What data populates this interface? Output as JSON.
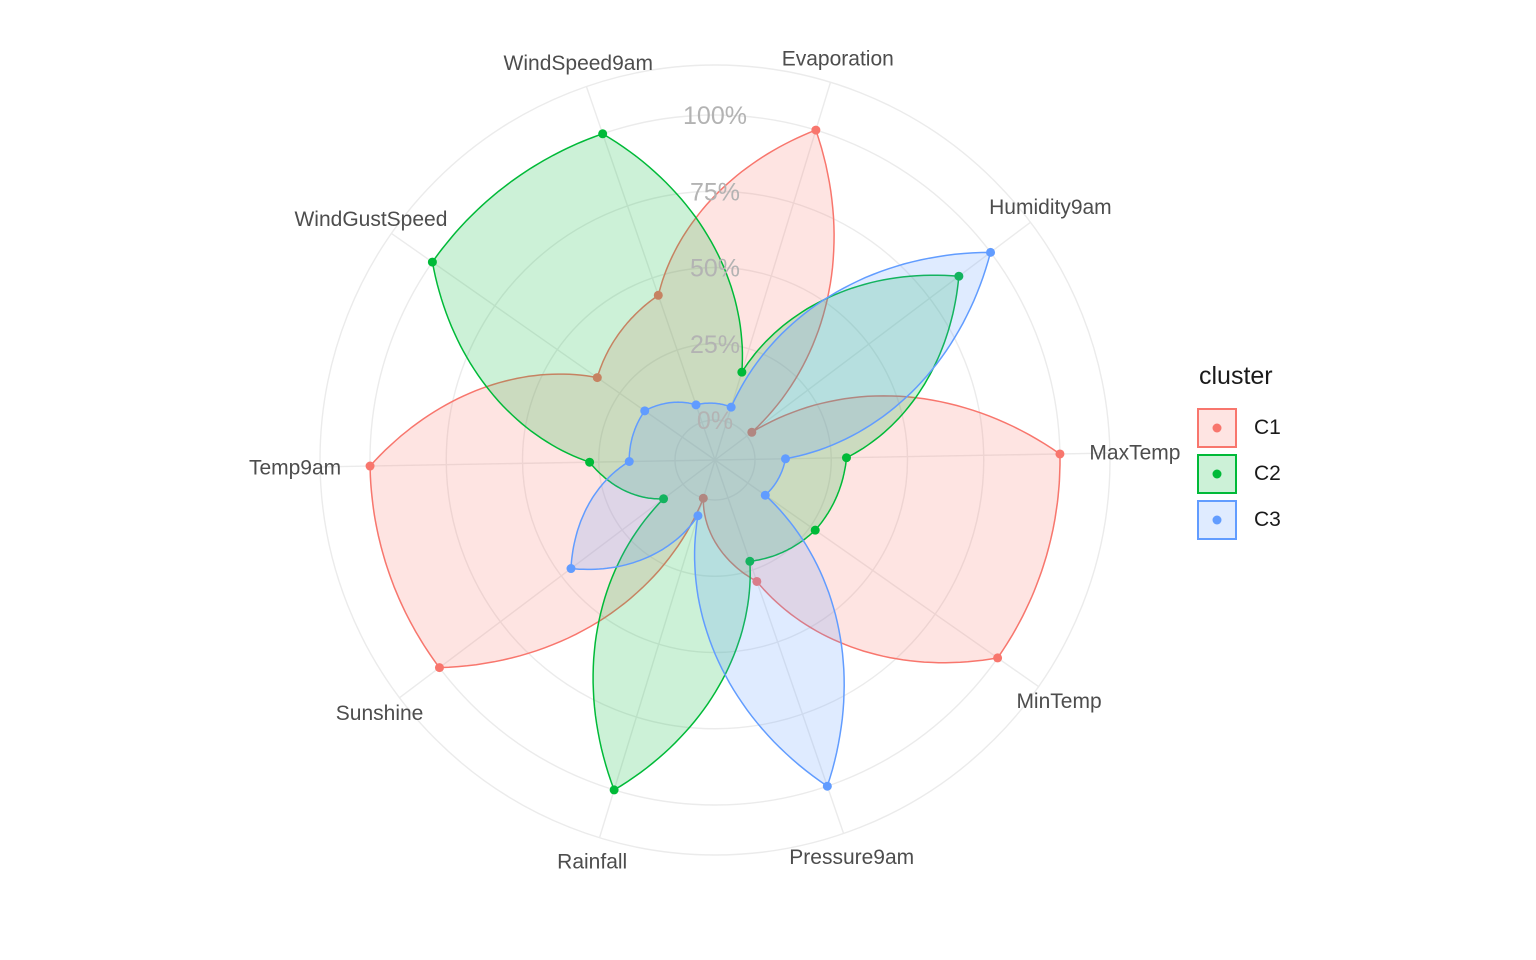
{
  "chart_data": {
    "type": "radar",
    "axes": [
      "Evaporation",
      "Humidity9am",
      "MaxTemp",
      "MinTemp",
      "Pressure9am",
      "Rainfall",
      "Sunshine",
      "Temp9am",
      "WindGustSpeed",
      "WindSpeed9am"
    ],
    "axis_labels_visible": [
      "Evaporation",
      "Humidity9am",
      "MaxTemp",
      "MinTemp",
      "Pressure9am",
      "Rainfall",
      "Sunshine",
      "Temp9am",
      "WindGustSpeed",
      "WindSpeed9am"
    ],
    "rlim": [
      0,
      1
    ],
    "radial_ticks": [
      "0%",
      "25%",
      "50%",
      "75%",
      "100%"
    ],
    "radial_tick_values": [
      0,
      0.25,
      0.5,
      0.75,
      1.0
    ],
    "series": [
      {
        "name": "C1",
        "color": "#F8766D",
        "values": [
          1.0,
          0.02,
          1.0,
          1.0,
          0.29,
          0.0,
          1.0,
          1.0,
          0.34,
          0.44
        ]
      },
      {
        "name": "C2",
        "color": "#00BA38",
        "values": [
          0.17,
          0.87,
          0.3,
          0.27,
          0.22,
          1.0,
          0.08,
          0.28,
          1.0,
          1.0
        ]
      },
      {
        "name": "C3",
        "color": "#619CFF",
        "values": [
          0.05,
          1.0,
          0.1,
          0.07,
          1.0,
          0.06,
          0.46,
          0.15,
          0.15,
          0.06
        ]
      }
    ],
    "legend": {
      "title": "cluster",
      "position": "right"
    },
    "grid": true
  }
}
